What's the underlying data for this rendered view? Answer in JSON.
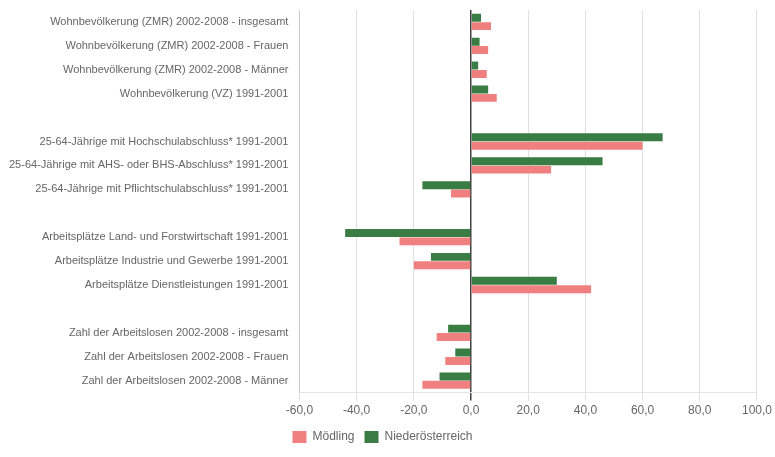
{
  "chart_data": {
    "type": "bar",
    "orientation": "horizontal",
    "categories": [
      "Wohnbevölkerung (ZMR) 2002-2008 - insgesamt",
      "Wohnbevölkerung (ZMR) 2002-2008 - Frauen",
      "Wohnbevölkerung (ZMR) 2002-2008 - Männer",
      "Wohnbevölkerung (VZ) 1991-2001",
      null,
      "25-64-Jährige mit Hochschulabschluss* 1991-2001",
      "25-64-Jährige mit AHS- oder BHS-Abschluss* 1991-2001",
      "25-64-Jährige mit Pflichtschulabschluss* 1991-2001",
      null,
      "Arbeitsplätze Land- und Forstwirtschaft 1991-2001",
      "Arbeitsplätze Industrie und Gewerbe 1991-2001",
      "Arbeitsplätze Dienstleistungen 1991-2001",
      null,
      "Zahl der Arbeitslosen 2002-2008 - insgesamt",
      "Zahl der Arbeitslosen 2002-2008 - Frauen",
      "Zahl der Arbeitslosen 2002-2008 - Männer"
    ],
    "series": [
      {
        "name": "Mödling",
        "color": "#f08080",
        "values": [
          7.0,
          6.0,
          5.5,
          9.0,
          null,
          60.0,
          28.0,
          -7.0,
          null,
          -25.0,
          -20.0,
          42.0,
          null,
          -12.0,
          -9.0,
          -17.0
        ]
      },
      {
        "name": "Niederösterreich",
        "color": "#3a7d44",
        "values": [
          3.5,
          3.0,
          2.5,
          6.0,
          null,
          67.0,
          46.0,
          -17.0,
          null,
          -44.0,
          -14.0,
          30.0,
          null,
          -8.0,
          -5.5,
          -11.0
        ]
      }
    ],
    "xlim": [
      -60,
      100
    ],
    "xticks": [
      {
        "value": -60,
        "label": "-60,0"
      },
      {
        "value": -40,
        "label": "-40,0"
      },
      {
        "value": -20,
        "label": "-20,0"
      },
      {
        "value": 0,
        "label": "0,0"
      },
      {
        "value": 20,
        "label": "20,0"
      },
      {
        "value": 40,
        "label": "40,0"
      },
      {
        "value": 60,
        "label": "60,0"
      },
      {
        "value": 80,
        "label": "80,0"
      },
      {
        "value": 100,
        "label": "100,0"
      }
    ],
    "grid": true,
    "legend": "bottom"
  }
}
